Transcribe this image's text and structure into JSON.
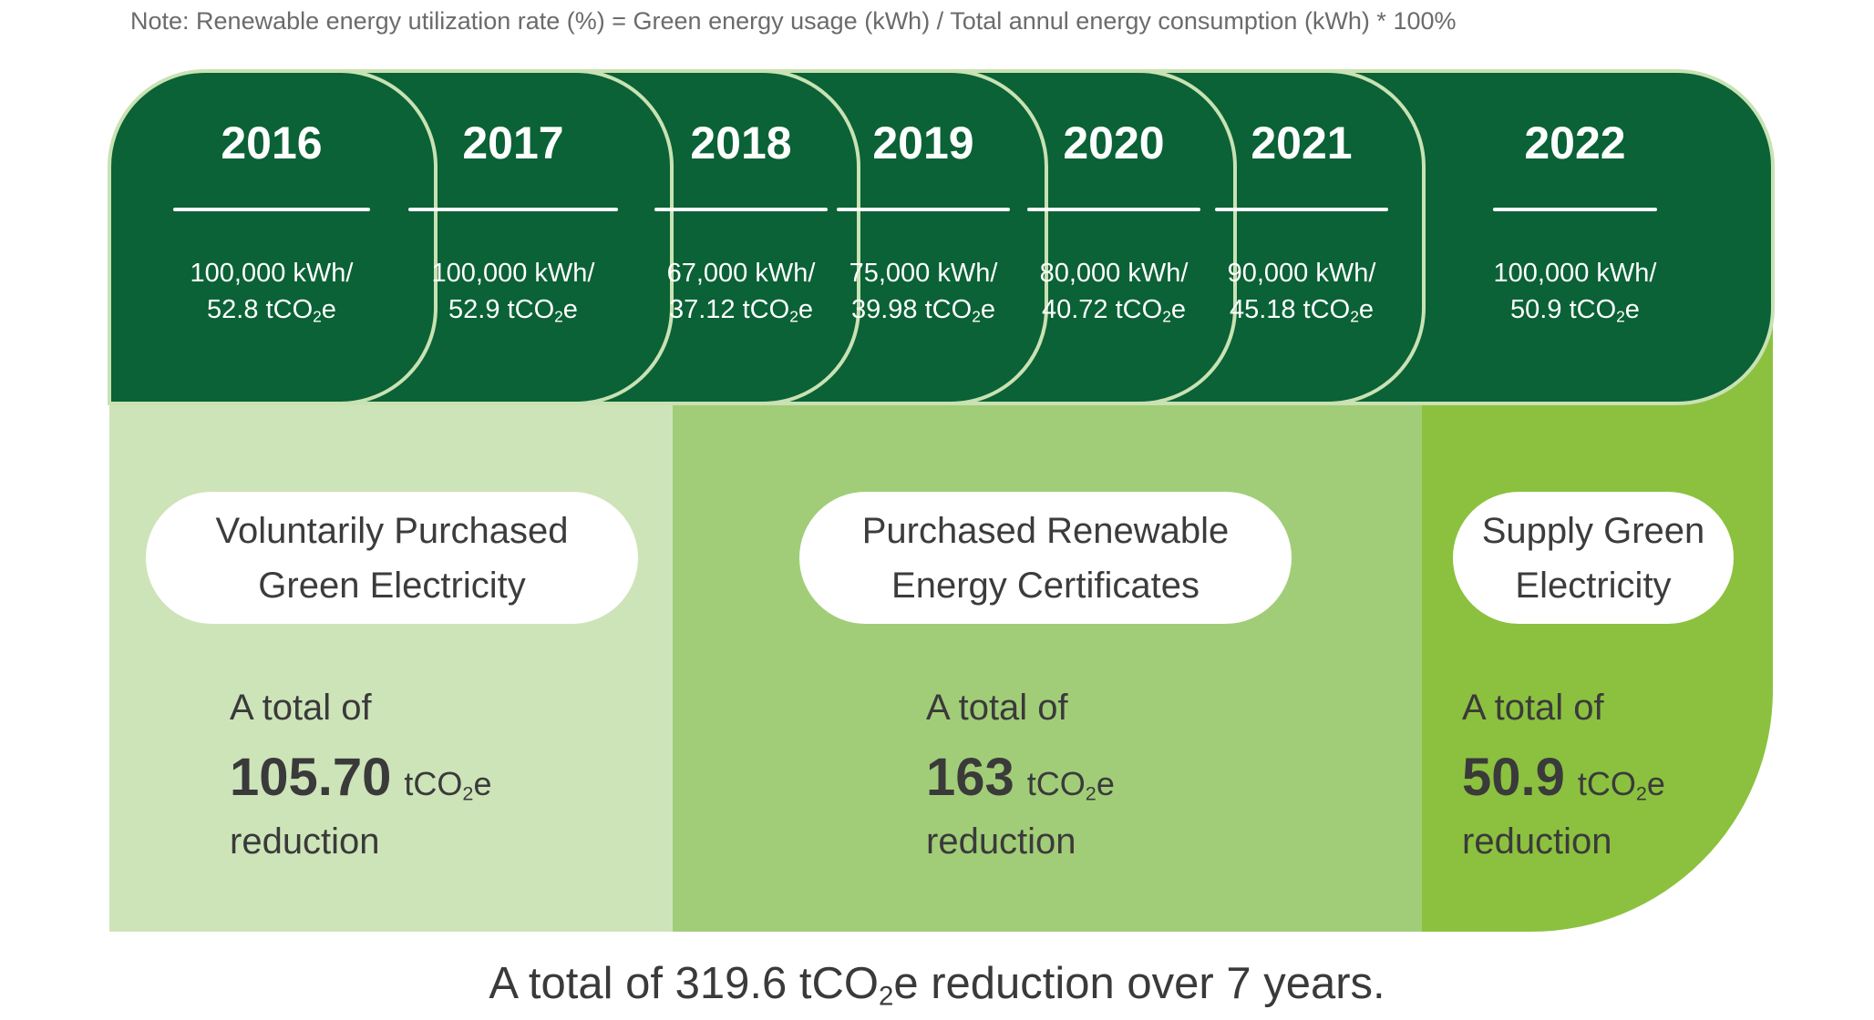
{
  "note": "Note: Renewable energy utilization rate (%) = Green energy usage (kWh) / Total annul energy consumption (kWh) * 100%",
  "years": [
    {
      "year": "2016",
      "usage": "100,000 kWh/",
      "emission_num": "52.8",
      "emission_unit": "tCO",
      "emission_sub": "2",
      "emission_end": "e"
    },
    {
      "year": "2017",
      "usage": "100,000 kWh/",
      "emission_num": "52.9",
      "emission_unit": "tCO",
      "emission_sub": "2",
      "emission_end": "e"
    },
    {
      "year": "2018",
      "usage": "67,000 kWh/",
      "emission_num": "37.12",
      "emission_unit": "tCO",
      "emission_sub": "2",
      "emission_end": "e"
    },
    {
      "year": "2019",
      "usage": "75,000 kWh/",
      "emission_num": "39.98",
      "emission_unit": "tCO",
      "emission_sub": "2",
      "emission_end": "e"
    },
    {
      "year": "2020",
      "usage": "80,000 kWh/",
      "emission_num": "40.72",
      "emission_unit": "tCO",
      "emission_sub": "2",
      "emission_end": "e"
    },
    {
      "year": "2021",
      "usage": "90,000 kWh/",
      "emission_num": "45.18",
      "emission_unit": "tCO",
      "emission_sub": "2",
      "emission_end": "e"
    },
    {
      "year": "2022",
      "usage": "100,000 kWh/",
      "emission_num": "50.9",
      "emission_unit": "tCO",
      "emission_sub": "2",
      "emission_end": "e"
    }
  ],
  "sections": [
    {
      "label_line1": "Voluntarily Purchased",
      "label_line2": "Green Electricity",
      "prefix": "A total of",
      "value": "105.70",
      "unit": "tCO",
      "unit_sub": "2",
      "unit_end": "e",
      "suffix": "reduction",
      "color": "#cde4b9"
    },
    {
      "label_line1": "Purchased Renewable",
      "label_line2": "Energy Certificates",
      "prefix": "A total of",
      "value": "163",
      "unit": "tCO",
      "unit_sub": "2",
      "unit_end": "e",
      "suffix": "reduction",
      "color": "#a2cd78"
    },
    {
      "label_line1": "Supply Green",
      "label_line2": "Electricity",
      "prefix": "A total of",
      "value": "50.9",
      "unit": "tCO",
      "unit_sub": "2",
      "unit_end": "e",
      "suffix": "reduction",
      "color": "#8bc13f"
    }
  ],
  "total": {
    "prefix": "A total of 319.6 tCO",
    "sub": "2",
    "suffix": "e reduction over 7 years."
  },
  "colors": {
    "dark_green": "#0a6236",
    "tab_border": "#c9e2b3"
  }
}
